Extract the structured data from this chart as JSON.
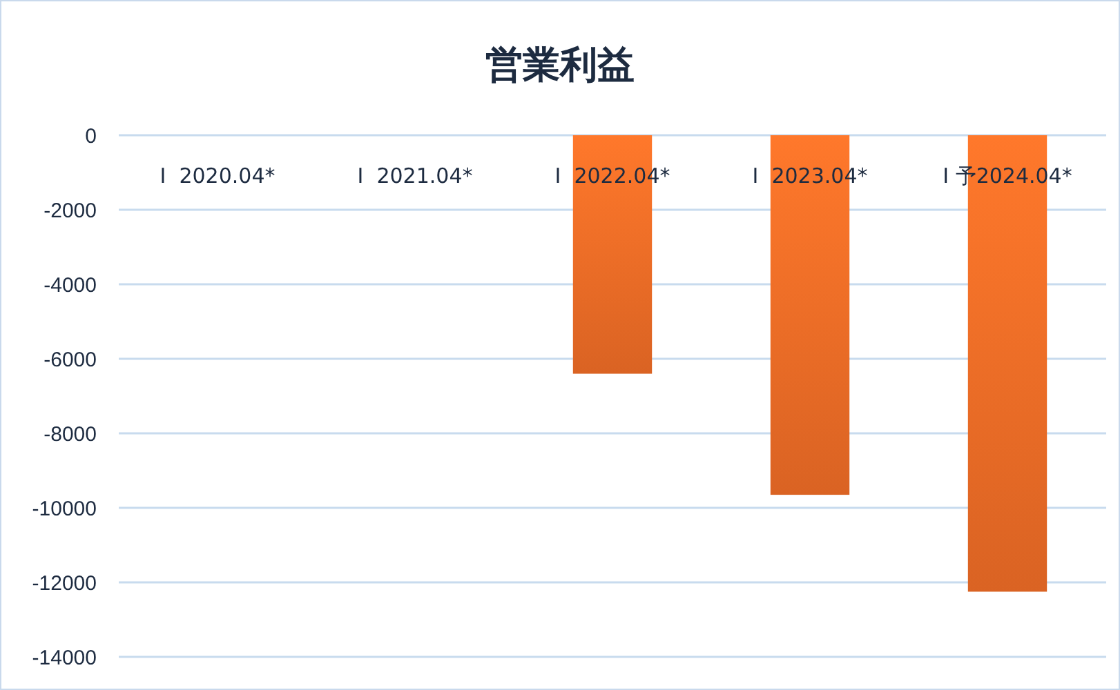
{
  "chart_data": {
    "type": "bar",
    "title": "営業利益",
    "categories": [
      "I  2020.04*",
      "I  2021.04*",
      "I  2022.04*",
      "I  2023.04*",
      "I 予2024.04*"
    ],
    "values": [
      null,
      null,
      -6400,
      -9650,
      -12250
    ],
    "color": "#ea6a26",
    "ylim": [
      -14000,
      0
    ],
    "yticks": [
      0,
      -2000,
      -4000,
      -6000,
      -8000,
      -10000,
      -12000,
      -14000
    ],
    "grid": "y"
  }
}
